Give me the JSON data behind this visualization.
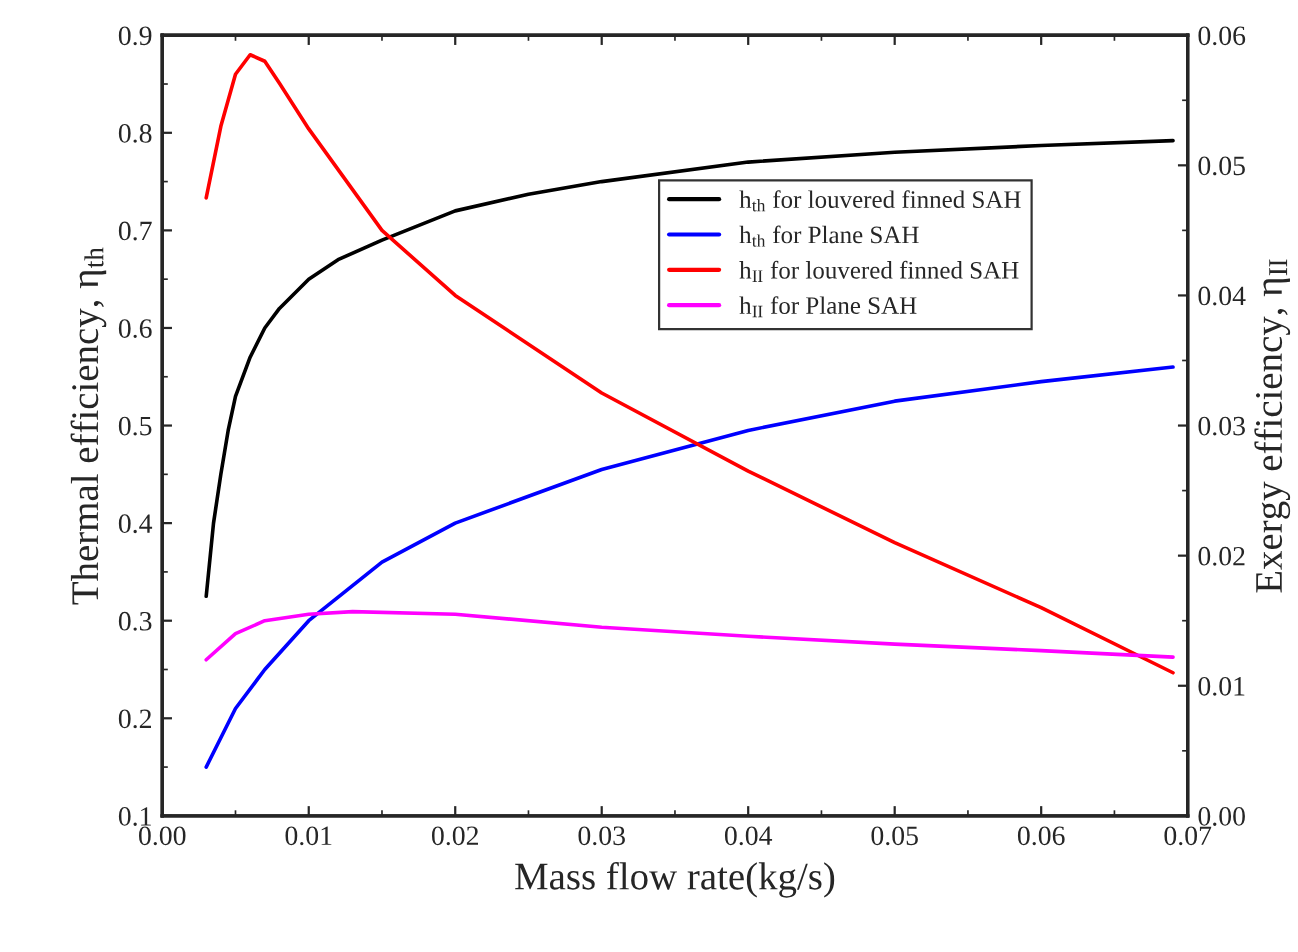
{
  "chart_data": {
    "type": "line",
    "xlabel": "Mass flow rate(kg/s)",
    "ylabel": "Thermal efficiency, η$_{th}$",
    "y2label": "Exergy efficiency, η$_{II}$",
    "xlim": [
      0.0,
      0.07
    ],
    "xticks": [
      {
        "value": 0,
        "label": "0.00"
      },
      0.01,
      0.02,
      0.03,
      0.04,
      0.05,
      0.06,
      0.07
    ],
    "ylim": [
      0.1,
      0.9
    ],
    "yticks": [
      0.1,
      0.2,
      0.3,
      0.4,
      0.5,
      0.6,
      0.7,
      0.8,
      0.9
    ],
    "y2lim": [
      0.0,
      0.06
    ],
    "y2ticks": [
      {
        "value": 0,
        "label": "0.00"
      },
      0.01,
      0.02,
      0.03,
      0.04,
      0.05,
      0.06
    ],
    "grid": false,
    "legend": "upper right",
    "marker": "none",
    "line_style": "solid",
    "series": [
      {
        "name": "h$_{th}$ for louvered finned SAH",
        "color": "#000000",
        "x": [
          0.003,
          0.0035,
          0.004,
          0.0045,
          0.005,
          0.006,
          0.007,
          0.008,
          0.01,
          0.012,
          0.015,
          0.02,
          0.025,
          0.03,
          0.04,
          0.05,
          0.06,
          0.069
        ],
        "values": [
          0.325,
          0.4,
          0.45,
          0.495,
          0.53,
          0.57,
          0.6,
          0.62,
          0.65,
          0.67,
          0.69,
          0.72,
          0.737,
          0.75,
          0.77,
          0.78,
          0.787,
          0.792
        ]
      },
      {
        "name": "h$_{th}$ for Plane SAH",
        "color": "#0000ff",
        "x": [
          0.003,
          0.005,
          0.007,
          0.01,
          0.015,
          0.02,
          0.03,
          0.04,
          0.05,
          0.06,
          0.069
        ],
        "values": [
          0.15,
          0.21,
          0.25,
          0.3,
          0.36,
          0.4,
          0.455,
          0.495,
          0.525,
          0.545,
          0.56
        ]
      },
      {
        "name": "h$_{II}$ for louvered finned SAH",
        "color": "#ff0000",
        "axis": "y2",
        "x": [
          0.003,
          0.004,
          0.005,
          0.006,
          0.007,
          0.008,
          0.01,
          0.015,
          0.02,
          0.03,
          0.04,
          0.05,
          0.06,
          0.069
        ],
        "values": [
          0.0475,
          0.053,
          0.057,
          0.0585,
          0.058,
          0.0563,
          0.0528,
          0.045,
          0.04,
          0.0325,
          0.0265,
          0.021,
          0.016,
          0.011
        ]
      },
      {
        "name": "h$_{II}$ for Plane SAH",
        "color": "#ff00ff",
        "axis": "y2",
        "x": [
          0.003,
          0.005,
          0.007,
          0.01,
          0.013,
          0.02,
          0.03,
          0.04,
          0.05,
          0.06,
          0.069
        ],
        "values": [
          0.012,
          0.014,
          0.015,
          0.0155,
          0.0157,
          0.0155,
          0.0145,
          0.0138,
          0.0132,
          0.0127,
          0.0122
        ]
      }
    ]
  }
}
